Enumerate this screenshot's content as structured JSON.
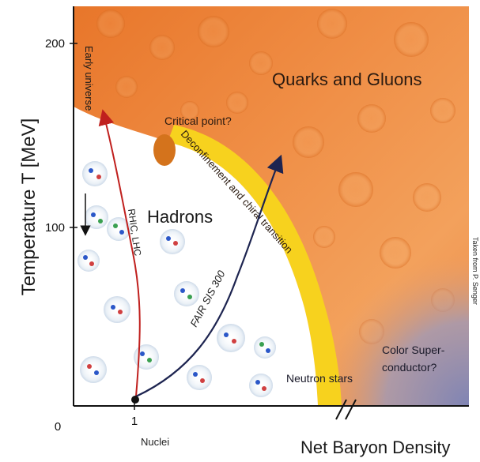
{
  "axes": {
    "y_title": "Temperature T [MeV]",
    "x_title": "Net Baryon Density",
    "y_ticks": [
      "200",
      "100",
      "0"
    ],
    "x_tick": "1",
    "x_tick_caption": "Nuclei"
  },
  "regions": {
    "quarks_gluons": "Quarks and Gluons",
    "hadrons": "Hadrons",
    "neutron_stars": "Neutron stars",
    "color_super_line1": "Color Super-",
    "color_super_line2": "conductor?"
  },
  "annotations": {
    "critical_point": "Critical point?",
    "transition": "Deconfinement and chiral transition",
    "early_universe": "Early universe",
    "rhic_lhc": "RHIC, LHC",
    "fair_sis": "FAIR SIS 300",
    "credit": "Taken from P. Senger"
  },
  "colors": {
    "qgp_orange": "#ee8a3a",
    "qgp_light": "#f6b070",
    "transition_yellow": "#f7d21e",
    "critical_point": "#d4731c",
    "color_superconductor": "#8d90b8",
    "rhic_arrow": "#c0201e",
    "fair_arrow": "#1d2450"
  }
}
